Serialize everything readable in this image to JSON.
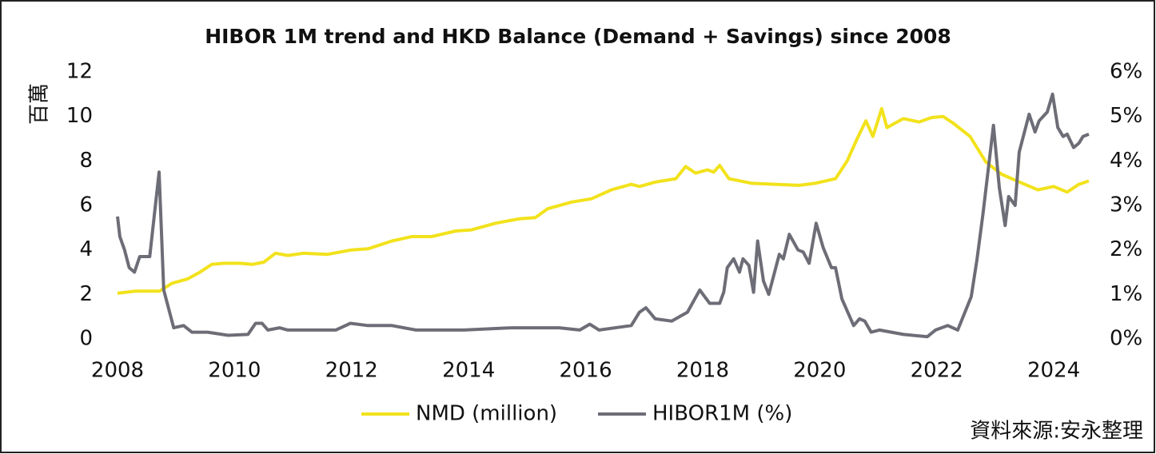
{
  "chart_data": {
    "type": "line",
    "title": "HIBOR 1M trend and HKD Balance (Demand + Savings) since 2008",
    "y_label": "百萬",
    "source": "資料來源:安永整理",
    "xlim": [
      2008,
      2024.6
    ],
    "xticks": [
      2008,
      2010,
      2012,
      2014,
      2016,
      2018,
      2020,
      2022,
      2024
    ],
    "ylim": [
      0,
      12
    ],
    "yticks": [
      0,
      2,
      4,
      6,
      8,
      10,
      12
    ],
    "y2lim": [
      0,
      6
    ],
    "y2ticks": [
      {
        "value": 0,
        "label": "0%"
      },
      {
        "value": 1,
        "label": "1%"
      },
      {
        "value": 2,
        "label": "2%"
      },
      {
        "value": 3,
        "label": "3%"
      },
      {
        "value": 4,
        "label": "4%"
      },
      {
        "value": 5,
        "label": "5%"
      },
      {
        "value": 6,
        "label": "6%"
      }
    ],
    "grid": false,
    "legend": "bottom",
    "series": [
      {
        "name": "NMD (million)",
        "color": "#f2e21c",
        "axis": "y",
        "x": [
          2008.0,
          2008.31,
          2008.72,
          2008.93,
          2009.2,
          2009.41,
          2009.61,
          2009.82,
          2010.09,
          2010.3,
          2010.5,
          2010.7,
          2010.91,
          2011.18,
          2011.59,
          2012.0,
          2012.28,
          2012.69,
          2013.03,
          2013.37,
          2013.78,
          2014.05,
          2014.46,
          2014.87,
          2015.14,
          2015.35,
          2015.76,
          2016.1,
          2016.44,
          2016.78,
          2016.92,
          2017.19,
          2017.54,
          2017.71,
          2017.88,
          2018.08,
          2018.19,
          2018.29,
          2018.45,
          2018.83,
          2019.24,
          2019.65,
          2019.93,
          2020.27,
          2020.47,
          2020.64,
          2020.79,
          2020.91,
          2021.06,
          2021.15,
          2021.43,
          2021.7,
          2021.91,
          2022.11,
          2022.28,
          2022.57,
          2022.84,
          2023.11,
          2023.46,
          2023.73,
          2024.0,
          2024.23,
          2024.43,
          2024.6
        ],
        "values": [
          2.05,
          2.15,
          2.15,
          2.5,
          2.7,
          3.0,
          3.35,
          3.4,
          3.4,
          3.35,
          3.45,
          3.85,
          3.75,
          3.85,
          3.8,
          4.0,
          4.05,
          4.4,
          4.6,
          4.6,
          4.85,
          4.9,
          5.2,
          5.4,
          5.45,
          5.85,
          6.15,
          6.3,
          6.7,
          6.95,
          6.85,
          7.05,
          7.2,
          7.75,
          7.45,
          7.6,
          7.5,
          7.8,
          7.2,
          7.0,
          6.95,
          6.9,
          7.0,
          7.2,
          8.0,
          9.0,
          9.8,
          9.1,
          10.35,
          9.5,
          9.9,
          9.75,
          9.95,
          10.0,
          9.7,
          9.1,
          7.95,
          7.4,
          7.0,
          6.7,
          6.85,
          6.6,
          6.95,
          7.1
        ]
      },
      {
        "name": "HIBOR1M (%)",
        "color": "#6d6d77",
        "axis": "y2",
        "x": [
          2008.0,
          2008.04,
          2008.12,
          2008.2,
          2008.29,
          2008.38,
          2008.55,
          2008.71,
          2008.79,
          2008.96,
          2009.13,
          2009.27,
          2009.54,
          2009.89,
          2010.23,
          2010.36,
          2010.47,
          2010.57,
          2010.77,
          2010.91,
          2011.18,
          2011.73,
          2011.98,
          2012.28,
          2012.69,
          2013.1,
          2013.92,
          2014.73,
          2015.55,
          2015.9,
          2016.07,
          2016.23,
          2016.78,
          2016.92,
          2017.03,
          2017.19,
          2017.47,
          2017.74,
          2017.95,
          2018.12,
          2018.29,
          2018.36,
          2018.42,
          2018.53,
          2018.63,
          2018.69,
          2018.79,
          2018.87,
          2018.94,
          2019.04,
          2019.13,
          2019.31,
          2019.38,
          2019.48,
          2019.63,
          2019.72,
          2019.82,
          2019.94,
          2020.06,
          2020.2,
          2020.27,
          2020.38,
          2020.58,
          2020.68,
          2020.77,
          2020.88,
          2021.02,
          2021.43,
          2021.84,
          2021.98,
          2022.19,
          2022.36,
          2022.59,
          2022.69,
          2022.79,
          2022.97,
          2023.07,
          2023.17,
          2023.23,
          2023.34,
          2023.41,
          2023.58,
          2023.68,
          2023.75,
          2023.89,
          2023.98,
          2024.07,
          2024.16,
          2024.23,
          2024.34,
          2024.43,
          2024.5,
          2024.6
        ],
        "values": [
          2.75,
          2.3,
          2.0,
          1.6,
          1.5,
          1.85,
          1.85,
          3.75,
          1.1,
          0.25,
          0.3,
          0.15,
          0.15,
          0.08,
          0.1,
          0.35,
          0.35,
          0.2,
          0.25,
          0.2,
          0.2,
          0.2,
          0.35,
          0.3,
          0.3,
          0.2,
          0.2,
          0.25,
          0.25,
          0.2,
          0.33,
          0.2,
          0.3,
          0.6,
          0.7,
          0.45,
          0.4,
          0.6,
          1.1,
          0.8,
          0.8,
          1.05,
          1.6,
          1.8,
          1.5,
          1.8,
          1.65,
          1.05,
          2.2,
          1.3,
          1.0,
          1.9,
          1.8,
          2.35,
          2.0,
          1.95,
          1.7,
          2.6,
          2.05,
          1.6,
          1.6,
          0.9,
          0.3,
          0.45,
          0.4,
          0.15,
          0.2,
          0.1,
          0.05,
          0.2,
          0.3,
          0.2,
          0.95,
          1.8,
          2.8,
          4.8,
          3.4,
          2.55,
          3.2,
          3.0,
          4.2,
          5.05,
          4.65,
          4.9,
          5.1,
          5.5,
          4.75,
          4.55,
          4.6,
          4.3,
          4.4,
          4.55,
          4.6
        ]
      }
    ]
  }
}
